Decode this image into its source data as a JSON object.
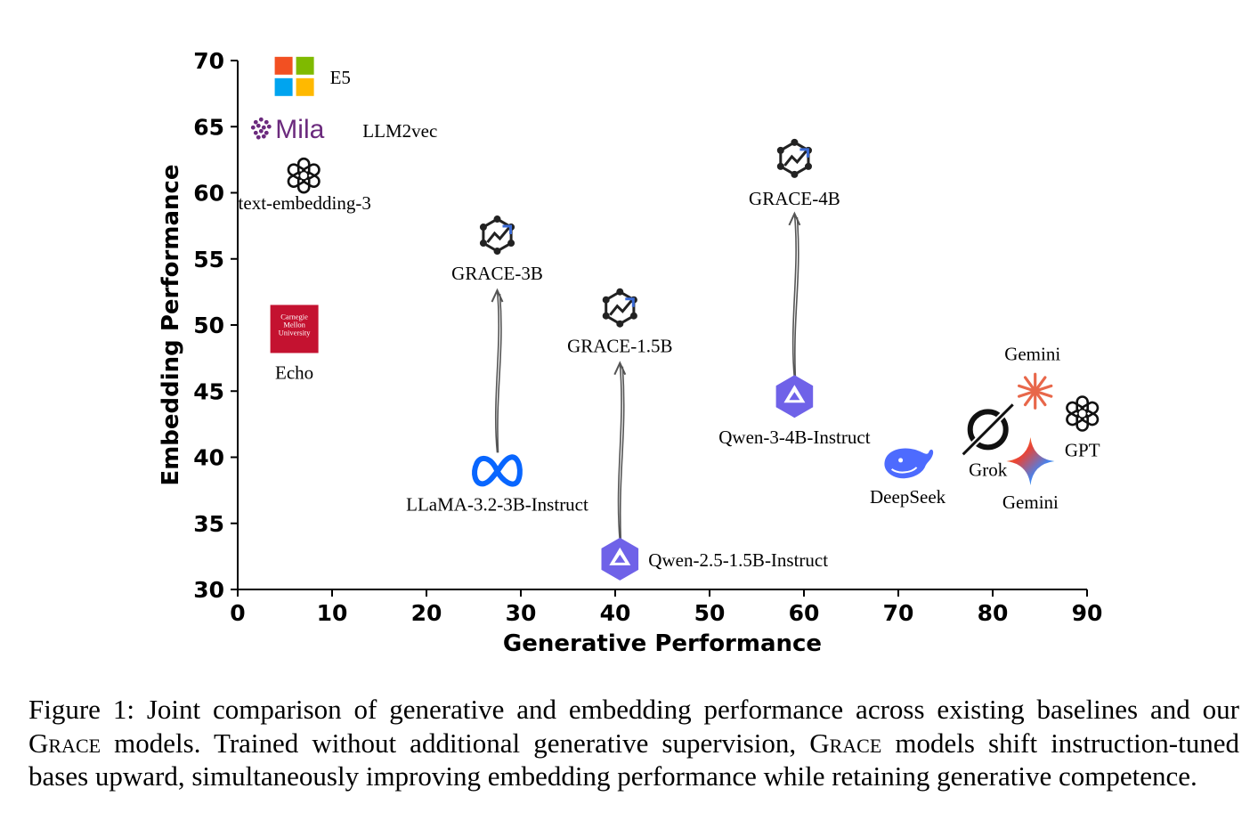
{
  "chart_data": {
    "type": "scatter",
    "xlabel": "Generative Performance",
    "ylabel": "Embedding Performance",
    "xlim": [
      0,
      90
    ],
    "ylim": [
      30,
      70
    ],
    "xticks": [
      0,
      10,
      20,
      30,
      40,
      50,
      60,
      70,
      80,
      90
    ],
    "yticks": [
      30,
      35,
      40,
      45,
      50,
      55,
      60,
      65,
      70
    ],
    "grid": false,
    "points": [
      {
        "label": "E5",
        "x": 6,
        "y": 68.8,
        "icon": "microsoft-logo-icon"
      },
      {
        "label": "LLM2vec",
        "x": 5.5,
        "y": 64.8,
        "icon": "mila-logo-icon",
        "logo_text": "Mila"
      },
      {
        "label": "text-embedding-3",
        "x": 7,
        "y": 61.3,
        "icon": "openai-logo-icon"
      },
      {
        "label": "Echo",
        "x": 6,
        "y": 49.7,
        "icon": "cmu-logo-icon",
        "logo_text": [
          "Carnegie",
          "Mellon",
          "University"
        ]
      },
      {
        "label": "GRACE-3B",
        "x": 27.5,
        "y": 56.8,
        "icon": "grace-logo-icon"
      },
      {
        "label": "LLaMA-3.2-3B-Instruct",
        "x": 27.5,
        "y": 39.0,
        "icon": "meta-logo-icon"
      },
      {
        "label": "GRACE-1.5B",
        "x": 40.5,
        "y": 51.3,
        "icon": "grace-logo-icon"
      },
      {
        "label": "Qwen-2.5-1.5B-Instruct",
        "x": 40.5,
        "y": 32.3,
        "icon": "qwen-logo-icon"
      },
      {
        "label": "GRACE-4B",
        "x": 59,
        "y": 62.6,
        "icon": "grace-logo-icon"
      },
      {
        "label": "Qwen-3-4B-Instruct",
        "x": 59,
        "y": 44.6,
        "icon": "qwen-logo-icon"
      },
      {
        "label": "DeepSeek",
        "x": 71,
        "y": 39.5,
        "icon": "deepseek-logo-icon"
      },
      {
        "label": "Grok",
        "x": 79.5,
        "y": 42.1,
        "icon": "grok-logo-icon"
      },
      {
        "label": "Gemini",
        "x": 84.5,
        "y": 45.0,
        "icon": "gemini-spark-icon"
      },
      {
        "label": "GPT",
        "x": 89.5,
        "y": 43.3,
        "icon": "openai-logo-icon"
      },
      {
        "label": "Gemini",
        "x": 84,
        "y": 39.7,
        "icon": "gemini-star-icon"
      }
    ],
    "arrows": [
      {
        "from": "LLaMA-3.2-3B-Instruct",
        "to": "GRACE-3B"
      },
      {
        "from": "Qwen-2.5-1.5B-Instruct",
        "to": "GRACE-1.5B"
      },
      {
        "from": "Qwen-3-4B-Instruct",
        "to": "GRACE-4B"
      }
    ]
  },
  "caption": {
    "prefix": "Figure 1: Joint comparison of generative and embedding performance across existing baselines and our ",
    "grace_1": "Grace",
    "middle": " models. Trained without additional generative supervision, ",
    "grace_2": "Grace",
    "suffix": " models shift instruction-tuned bases upward, simultaneously improving embedding performance while retaining generative competence."
  },
  "colors": {
    "axis": "#000000",
    "arrow": "#555555",
    "meta_blue": "#0866ff",
    "qwen_purple": "#6f62e8",
    "mila_purple": "#6b2a7d",
    "cmu_red": "#c41230",
    "deepseek_blue": "#4d6bfe",
    "gemini_orange": "#e8674a",
    "ms_red": "#f25022",
    "ms_green": "#7fba00",
    "ms_blue": "#00a4ef",
    "ms_yellow": "#ffb900"
  }
}
